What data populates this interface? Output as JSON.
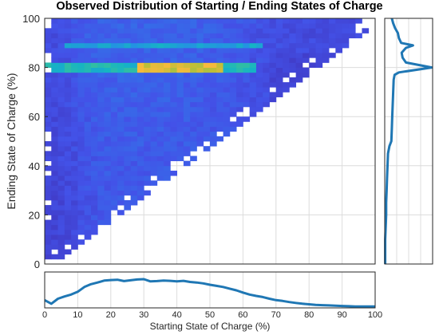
{
  "chart_data": {
    "type": "heatmap",
    "title": "Observed Distribution of Starting / Ending States of Charge",
    "xlabel": "Starting State of Charge (%)",
    "ylabel": "Ending State of Charge (%)",
    "xlim": [
      0,
      100
    ],
    "ylim": [
      0,
      100
    ],
    "xticks": [
      "0",
      "10",
      "20",
      "30",
      "40",
      "50",
      "60",
      "70",
      "80",
      "90",
      "100"
    ],
    "yticks": [
      "0",
      "20",
      "40",
      "60",
      "80",
      "100"
    ],
    "grid": true,
    "colormap": "parula",
    "bin_size": 2,
    "density_highlights": [
      {
        "ending_soc": 80,
        "start_range": [
          0,
          62
        ],
        "level": "high",
        "peak_start_range": [
          28,
          52
        ]
      },
      {
        "ending_soc": 90,
        "start_range": [
          5,
          65
        ],
        "level": "medium"
      }
    ],
    "start_marginal": {
      "x": [
        0,
        2,
        4,
        6,
        8,
        10,
        12,
        14,
        16,
        18,
        20,
        22,
        24,
        26,
        28,
        30,
        32,
        34,
        36,
        38,
        40,
        42,
        44,
        46,
        48,
        50,
        52,
        54,
        56,
        58,
        60,
        62,
        64,
        66,
        68,
        70,
        72,
        74,
        76,
        78,
        80,
        82,
        84,
        86,
        88,
        90,
        92,
        94,
        96,
        98,
        100
      ],
      "density": [
        0.25,
        0.12,
        0.3,
        0.38,
        0.45,
        0.55,
        0.72,
        0.82,
        0.88,
        0.95,
        0.97,
        0.98,
        0.93,
        0.96,
        0.99,
        1.0,
        0.92,
        0.93,
        0.95,
        0.94,
        0.92,
        0.94,
        0.9,
        0.88,
        0.85,
        0.8,
        0.76,
        0.72,
        0.66,
        0.6,
        0.52,
        0.45,
        0.4,
        0.36,
        0.3,
        0.25,
        0.22,
        0.18,
        0.15,
        0.12,
        0.1,
        0.08,
        0.07,
        0.06,
        0.05,
        0.04,
        0.03,
        0.02,
        0.02,
        0.02,
        0.02
      ]
    },
    "end_marginal": {
      "y": [
        0,
        5,
        10,
        15,
        20,
        25,
        30,
        35,
        40,
        45,
        48,
        50,
        55,
        60,
        65,
        70,
        75,
        77,
        78,
        80,
        82,
        84,
        86,
        88,
        89,
        90,
        92,
        94,
        96,
        98,
        100
      ],
      "density": [
        0.01,
        0.01,
        0.01,
        0.02,
        0.03,
        0.03,
        0.04,
        0.05,
        0.06,
        0.07,
        0.1,
        0.14,
        0.15,
        0.16,
        0.17,
        0.18,
        0.19,
        0.21,
        0.3,
        1.0,
        0.45,
        0.38,
        0.36,
        0.45,
        0.6,
        0.35,
        0.3,
        0.28,
        0.22,
        0.18,
        0.15
      ]
    }
  }
}
